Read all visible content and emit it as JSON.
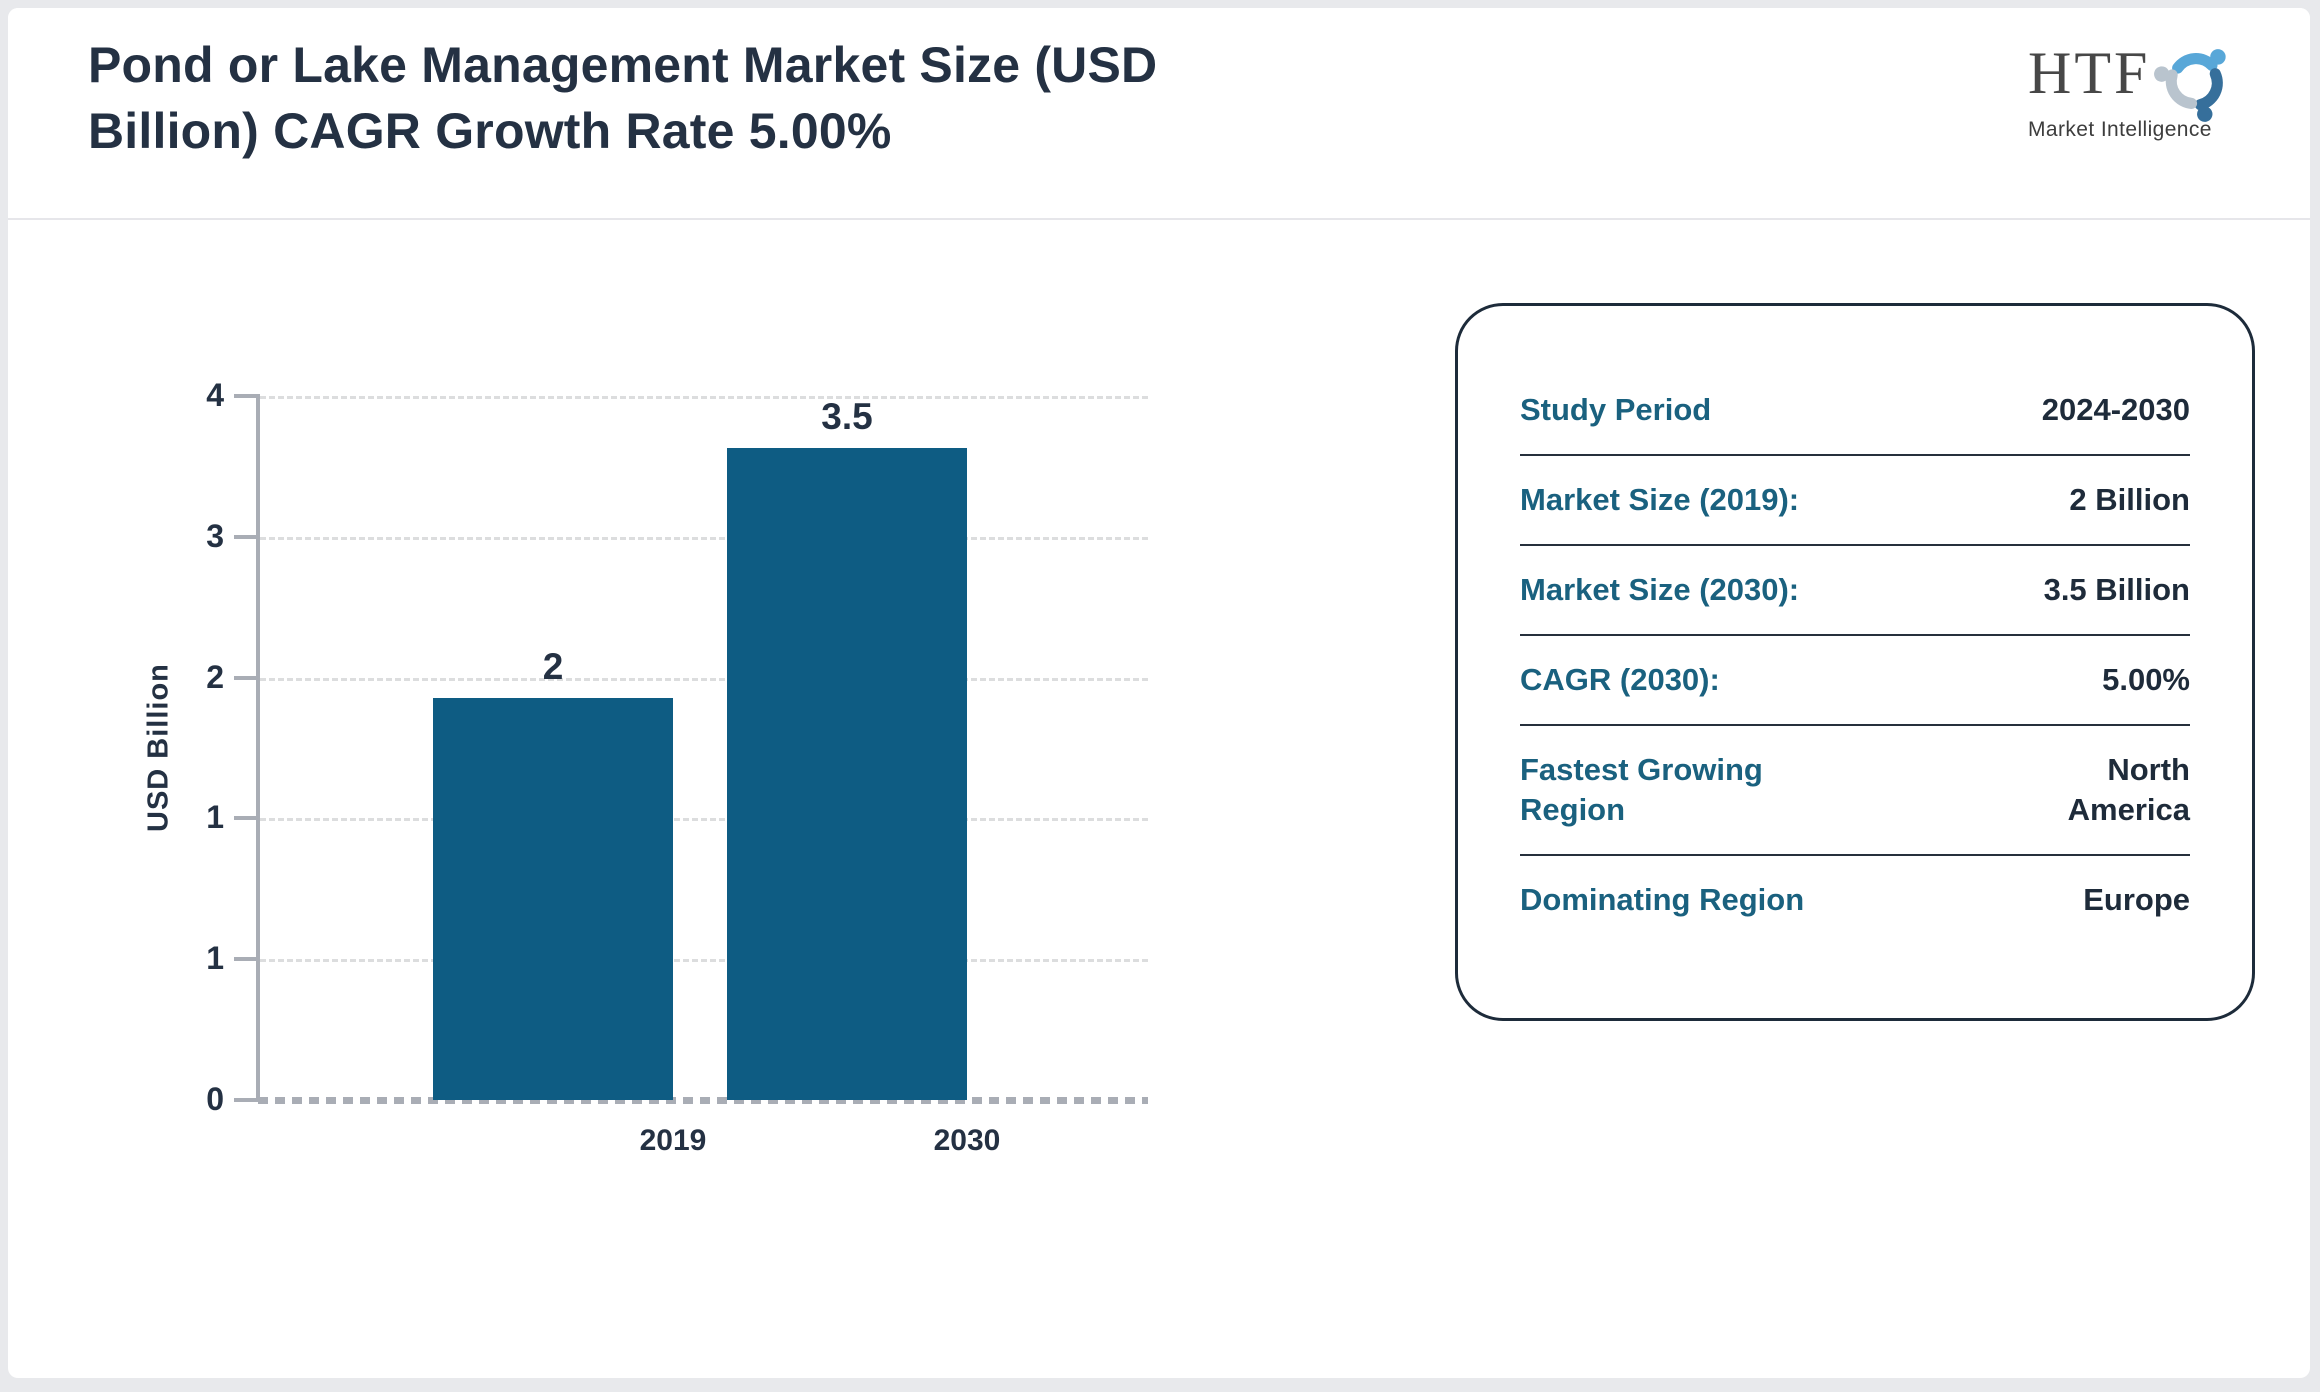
{
  "header": {
    "title": "Pond or Lake Management Market Size (USD\nBillion) CAGR Growth Rate 5.00%",
    "logo": {
      "name": "HTF",
      "tagline": "Market Intelligence",
      "icon_colors": {
        "light_blue": "#58a7d8",
        "dark_blue": "#366f9b",
        "gray_blue": "#b9c4ce"
      }
    }
  },
  "chart_data": {
    "type": "bar",
    "title": "Pond or Lake Management Market Size (USD Billion) CAGR Growth Rate 5.00%",
    "categories": [
      "2019",
      "2030"
    ],
    "values": [
      2,
      3.5
    ],
    "bar_labels": [
      "2",
      "3.5"
    ],
    "xlabel": "",
    "ylabel": "USD Billion",
    "ylim": [
      0,
      3.5
    ],
    "ytick_values": [
      0,
      0.7,
      1.4,
      2.1,
      2.8,
      3.5
    ],
    "ytick_labels": [
      "0",
      "1",
      "1",
      "2",
      "3",
      "4"
    ],
    "grid": true,
    "grid_style": "dashed",
    "legend": false,
    "bar_color": "#0e5c83"
  },
  "info_panel": {
    "rows": [
      {
        "label": "Study Period",
        "value": "2024-2030"
      },
      {
        "label": "Market Size (2019):",
        "value": "2 Billion"
      },
      {
        "label": "Market Size (2030):",
        "value": "3.5 Billion"
      },
      {
        "label": "CAGR (2030):",
        "value": "5.00%"
      },
      {
        "label": "Fastest Growing\nRegion",
        "value": "North\nAmerica"
      },
      {
        "label": "Dominating Region",
        "value": "Europe"
      }
    ]
  },
  "colors": {
    "accent_teal": "#1a617f",
    "navy_text": "#243143",
    "bar_fill": "#0e5c83",
    "background": "#e8e9ec"
  }
}
